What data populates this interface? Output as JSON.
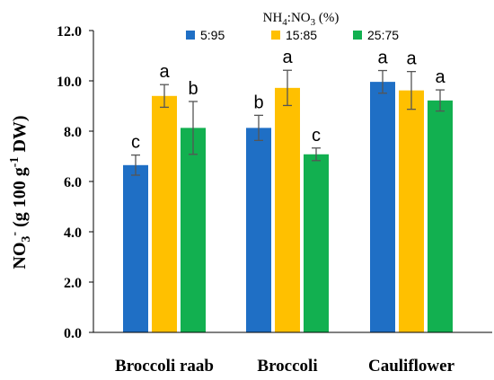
{
  "chart_data": {
    "type": "bar",
    "categories": [
      "Broccoli raab",
      "Broccoli",
      "Cauliflower"
    ],
    "series": [
      {
        "name": "5:95",
        "color": "#1F6FC5",
        "values": [
          6.65,
          8.13,
          9.96
        ],
        "errors": [
          0.4,
          0.5,
          0.45
        ],
        "letters": [
          "c",
          "b",
          "a"
        ]
      },
      {
        "name": "15:85",
        "color": "#FFC000",
        "values": [
          9.4,
          9.72,
          9.62
        ],
        "errors": [
          0.45,
          0.7,
          0.75
        ],
        "letters": [
          "a",
          "a",
          "a"
        ]
      },
      {
        "name": "25:75",
        "color": "#12B050",
        "values": [
          8.13,
          7.08,
          9.22
        ],
        "errors": [
          1.05,
          0.25,
          0.42
        ],
        "letters": [
          "b",
          "c",
          "a"
        ]
      }
    ],
    "ylim": [
      0,
      12
    ],
    "yticks": [
      "0.0",
      "2.0",
      "4.0",
      "6.0",
      "8.0",
      "10.0",
      "12.0"
    ],
    "ylabel": {
      "base": "NO",
      "sub": "3",
      "sup": "-",
      "mid": " (g 100 g",
      "sup2": "-1",
      "end": " DW)"
    },
    "legend": {
      "title": {
        "pre": "NH",
        "sub1": "4",
        "mid": ":NO",
        "sub2": "3",
        "post": " (%)"
      },
      "position": "top"
    },
    "grid": false
  }
}
